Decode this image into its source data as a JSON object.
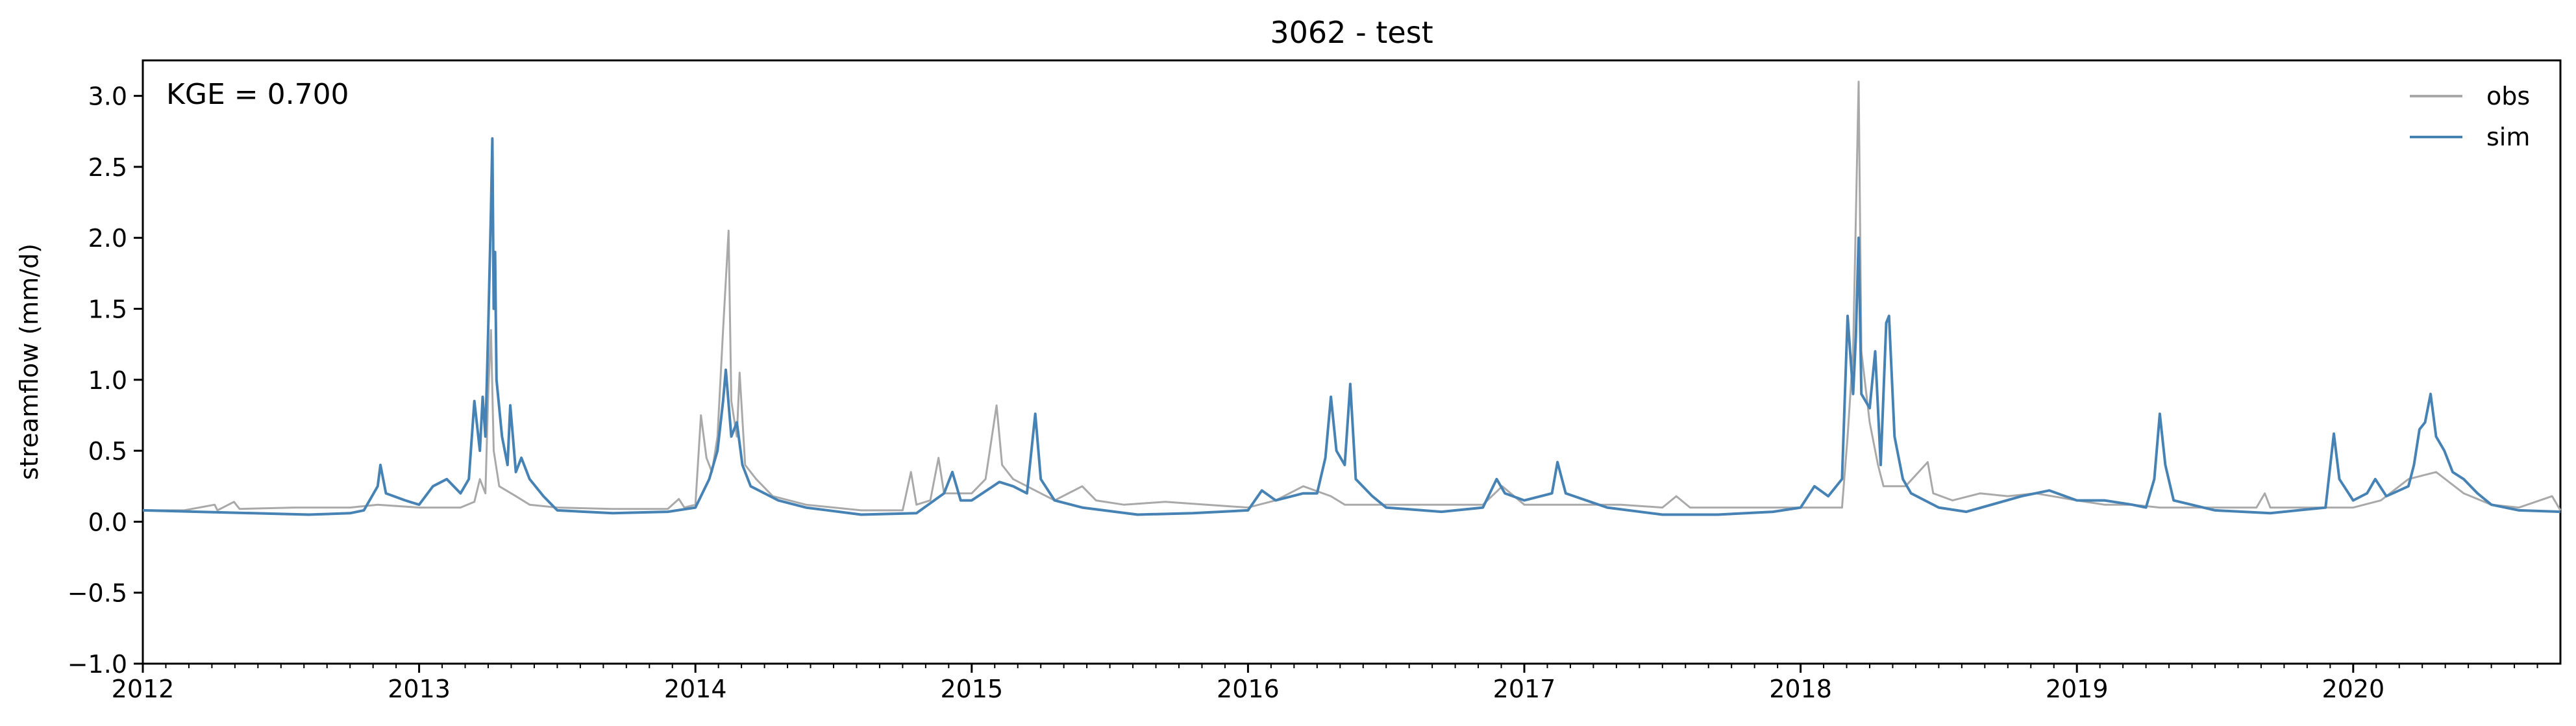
{
  "chart_data": {
    "type": "line",
    "title": "3062 - test",
    "xlabel": "",
    "ylabel": "streamflow (mm/d)",
    "annotation": "KGE = 0.700",
    "xlim": [
      2012.0,
      2020.75
    ],
    "ylim": [
      -1.0,
      3.25
    ],
    "x_ticks": [
      2012,
      2013,
      2014,
      2015,
      2016,
      2017,
      2018,
      2019,
      2020
    ],
    "x_tick_labels": [
      "2012",
      "2013",
      "2014",
      "2015",
      "2016",
      "2017",
      "2018",
      "2019",
      "2020"
    ],
    "y_ticks": [
      -1.0,
      -0.5,
      0.0,
      0.5,
      1.0,
      1.5,
      2.0,
      2.5,
      3.0
    ],
    "y_tick_labels": [
      "−1.0",
      "−0.5",
      "0.0",
      "0.5",
      "1.0",
      "1.5",
      "2.0",
      "2.5",
      "3.0"
    ],
    "grid": false,
    "legend_position": "top-right",
    "series": [
      {
        "name": "obs",
        "color": "#a9a9a9",
        "points": [
          [
            2012.0,
            0.08
          ],
          [
            2012.15,
            0.08
          ],
          [
            2012.26,
            0.12
          ],
          [
            2012.27,
            0.08
          ],
          [
            2012.33,
            0.14
          ],
          [
            2012.35,
            0.09
          ],
          [
            2012.55,
            0.1
          ],
          [
            2012.75,
            0.1
          ],
          [
            2012.85,
            0.12
          ],
          [
            2013.0,
            0.1
          ],
          [
            2013.15,
            0.1
          ],
          [
            2013.2,
            0.14
          ],
          [
            2013.22,
            0.3
          ],
          [
            2013.24,
            0.2
          ],
          [
            2013.25,
            0.9
          ],
          [
            2013.26,
            1.35
          ],
          [
            2013.27,
            0.5
          ],
          [
            2013.29,
            0.25
          ],
          [
            2013.35,
            0.18
          ],
          [
            2013.4,
            0.12
          ],
          [
            2013.5,
            0.1
          ],
          [
            2013.7,
            0.09
          ],
          [
            2013.9,
            0.09
          ],
          [
            2013.94,
            0.16
          ],
          [
            2013.96,
            0.1
          ],
          [
            2014.0,
            0.12
          ],
          [
            2014.02,
            0.75
          ],
          [
            2014.04,
            0.45
          ],
          [
            2014.06,
            0.35
          ],
          [
            2014.08,
            0.6
          ],
          [
            2014.1,
            1.35
          ],
          [
            2014.12,
            2.05
          ],
          [
            2014.13,
            0.85
          ],
          [
            2014.15,
            0.6
          ],
          [
            2014.16,
            1.05
          ],
          [
            2014.18,
            0.4
          ],
          [
            2014.22,
            0.3
          ],
          [
            2014.28,
            0.18
          ],
          [
            2014.4,
            0.12
          ],
          [
            2014.6,
            0.08
          ],
          [
            2014.75,
            0.08
          ],
          [
            2014.78,
            0.35
          ],
          [
            2014.8,
            0.12
          ],
          [
            2014.85,
            0.15
          ],
          [
            2014.88,
            0.45
          ],
          [
            2014.9,
            0.2
          ],
          [
            2015.0,
            0.2
          ],
          [
            2015.05,
            0.3
          ],
          [
            2015.09,
            0.82
          ],
          [
            2015.11,
            0.4
          ],
          [
            2015.15,
            0.3
          ],
          [
            2015.25,
            0.2
          ],
          [
            2015.3,
            0.15
          ],
          [
            2015.4,
            0.25
          ],
          [
            2015.45,
            0.15
          ],
          [
            2015.55,
            0.12
          ],
          [
            2015.7,
            0.14
          ],
          [
            2015.85,
            0.12
          ],
          [
            2016.0,
            0.1
          ],
          [
            2016.1,
            0.15
          ],
          [
            2016.2,
            0.25
          ],
          [
            2016.3,
            0.18
          ],
          [
            2016.35,
            0.12
          ],
          [
            2016.5,
            0.12
          ],
          [
            2016.7,
            0.12
          ],
          [
            2016.85,
            0.12
          ],
          [
            2016.92,
            0.25
          ],
          [
            2017.0,
            0.12
          ],
          [
            2017.2,
            0.12
          ],
          [
            2017.35,
            0.12
          ],
          [
            2017.5,
            0.1
          ],
          [
            2017.55,
            0.18
          ],
          [
            2017.6,
            0.1
          ],
          [
            2017.8,
            0.1
          ],
          [
            2018.0,
            0.1
          ],
          [
            2018.15,
            0.1
          ],
          [
            2018.17,
            0.6
          ],
          [
            2018.19,
            1.2
          ],
          [
            2018.21,
            3.1
          ],
          [
            2018.22,
            1.2
          ],
          [
            2018.25,
            0.7
          ],
          [
            2018.28,
            0.4
          ],
          [
            2018.3,
            0.25
          ],
          [
            2018.38,
            0.25
          ],
          [
            2018.46,
            0.42
          ],
          [
            2018.48,
            0.2
          ],
          [
            2018.55,
            0.15
          ],
          [
            2018.65,
            0.2
          ],
          [
            2018.75,
            0.18
          ],
          [
            2018.85,
            0.2
          ],
          [
            2019.0,
            0.15
          ],
          [
            2019.1,
            0.12
          ],
          [
            2019.2,
            0.12
          ],
          [
            2019.3,
            0.1
          ],
          [
            2019.5,
            0.1
          ],
          [
            2019.65,
            0.1
          ],
          [
            2019.68,
            0.2
          ],
          [
            2019.7,
            0.1
          ],
          [
            2019.9,
            0.1
          ],
          [
            2020.0,
            0.1
          ],
          [
            2020.1,
            0.15
          ],
          [
            2020.2,
            0.3
          ],
          [
            2020.3,
            0.35
          ],
          [
            2020.4,
            0.2
          ],
          [
            2020.5,
            0.12
          ],
          [
            2020.6,
            0.1
          ],
          [
            2020.72,
            0.18
          ],
          [
            2020.75,
            0.08
          ]
        ]
      },
      {
        "name": "sim",
        "color": "#4682b4",
        "points": [
          [
            2012.0,
            0.08
          ],
          [
            2012.2,
            0.07
          ],
          [
            2012.4,
            0.06
          ],
          [
            2012.6,
            0.05
          ],
          [
            2012.75,
            0.06
          ],
          [
            2012.8,
            0.08
          ],
          [
            2012.85,
            0.25
          ],
          [
            2012.86,
            0.4
          ],
          [
            2012.88,
            0.2
          ],
          [
            2012.95,
            0.15
          ],
          [
            2013.0,
            0.12
          ],
          [
            2013.05,
            0.25
          ],
          [
            2013.1,
            0.3
          ],
          [
            2013.15,
            0.2
          ],
          [
            2013.18,
            0.3
          ],
          [
            2013.2,
            0.85
          ],
          [
            2013.22,
            0.5
          ],
          [
            2013.23,
            0.88
          ],
          [
            2013.24,
            0.6
          ],
          [
            2013.25,
            1.35
          ],
          [
            2013.26,
            2.2
          ],
          [
            2013.265,
            2.7
          ],
          [
            2013.27,
            1.5
          ],
          [
            2013.275,
            1.9
          ],
          [
            2013.28,
            1.0
          ],
          [
            2013.3,
            0.6
          ],
          [
            2013.32,
            0.4
          ],
          [
            2013.33,
            0.82
          ],
          [
            2013.35,
            0.35
          ],
          [
            2013.37,
            0.45
          ],
          [
            2013.4,
            0.3
          ],
          [
            2013.45,
            0.18
          ],
          [
            2013.5,
            0.08
          ],
          [
            2013.7,
            0.06
          ],
          [
            2013.9,
            0.07
          ],
          [
            2014.0,
            0.1
          ],
          [
            2014.05,
            0.3
          ],
          [
            2014.08,
            0.5
          ],
          [
            2014.1,
            0.85
          ],
          [
            2014.11,
            1.07
          ],
          [
            2014.13,
            0.6
          ],
          [
            2014.15,
            0.7
          ],
          [
            2014.17,
            0.4
          ],
          [
            2014.2,
            0.25
          ],
          [
            2014.25,
            0.2
          ],
          [
            2014.3,
            0.15
          ],
          [
            2014.4,
            0.1
          ],
          [
            2014.6,
            0.05
          ],
          [
            2014.8,
            0.06
          ],
          [
            2014.9,
            0.2
          ],
          [
            2014.93,
            0.35
          ],
          [
            2014.96,
            0.15
          ],
          [
            2015.0,
            0.15
          ],
          [
            2015.1,
            0.28
          ],
          [
            2015.15,
            0.25
          ],
          [
            2015.2,
            0.2
          ],
          [
            2015.23,
            0.76
          ],
          [
            2015.25,
            0.3
          ],
          [
            2015.3,
            0.15
          ],
          [
            2015.4,
            0.1
          ],
          [
            2015.6,
            0.05
          ],
          [
            2015.8,
            0.06
          ],
          [
            2016.0,
            0.08
          ],
          [
            2016.05,
            0.22
          ],
          [
            2016.1,
            0.15
          ],
          [
            2016.2,
            0.2
          ],
          [
            2016.25,
            0.2
          ],
          [
            2016.28,
            0.45
          ],
          [
            2016.3,
            0.88
          ],
          [
            2016.32,
            0.5
          ],
          [
            2016.35,
            0.4
          ],
          [
            2016.37,
            0.97
          ],
          [
            2016.39,
            0.3
          ],
          [
            2016.45,
            0.18
          ],
          [
            2016.5,
            0.1
          ],
          [
            2016.7,
            0.07
          ],
          [
            2016.85,
            0.1
          ],
          [
            2016.9,
            0.3
          ],
          [
            2016.93,
            0.2
          ],
          [
            2017.0,
            0.15
          ],
          [
            2017.1,
            0.2
          ],
          [
            2017.12,
            0.42
          ],
          [
            2017.15,
            0.2
          ],
          [
            2017.3,
            0.1
          ],
          [
            2017.5,
            0.05
          ],
          [
            2017.7,
            0.05
          ],
          [
            2017.9,
            0.07
          ],
          [
            2018.0,
            0.1
          ],
          [
            2018.05,
            0.25
          ],
          [
            2018.1,
            0.18
          ],
          [
            2018.15,
            0.3
          ],
          [
            2018.17,
            1.45
          ],
          [
            2018.19,
            0.9
          ],
          [
            2018.2,
            1.3
          ],
          [
            2018.21,
            2.0
          ],
          [
            2018.22,
            0.9
          ],
          [
            2018.25,
            0.8
          ],
          [
            2018.27,
            1.2
          ],
          [
            2018.29,
            0.4
          ],
          [
            2018.31,
            1.4
          ],
          [
            2018.32,
            1.45
          ],
          [
            2018.34,
            0.6
          ],
          [
            2018.37,
            0.3
          ],
          [
            2018.4,
            0.2
          ],
          [
            2018.5,
            0.1
          ],
          [
            2018.6,
            0.07
          ],
          [
            2018.8,
            0.18
          ],
          [
            2018.9,
            0.22
          ],
          [
            2019.0,
            0.15
          ],
          [
            2019.1,
            0.15
          ],
          [
            2019.2,
            0.12
          ],
          [
            2019.25,
            0.1
          ],
          [
            2019.28,
            0.3
          ],
          [
            2019.3,
            0.76
          ],
          [
            2019.32,
            0.4
          ],
          [
            2019.35,
            0.15
          ],
          [
            2019.5,
            0.08
          ],
          [
            2019.7,
            0.06
          ],
          [
            2019.9,
            0.1
          ],
          [
            2019.93,
            0.62
          ],
          [
            2019.95,
            0.3
          ],
          [
            2020.0,
            0.15
          ],
          [
            2020.05,
            0.2
          ],
          [
            2020.08,
            0.3
          ],
          [
            2020.12,
            0.18
          ],
          [
            2020.2,
            0.25
          ],
          [
            2020.22,
            0.4
          ],
          [
            2020.24,
            0.65
          ],
          [
            2020.26,
            0.7
          ],
          [
            2020.28,
            0.9
          ],
          [
            2020.3,
            0.6
          ],
          [
            2020.33,
            0.5
          ],
          [
            2020.36,
            0.35
          ],
          [
            2020.4,
            0.3
          ],
          [
            2020.45,
            0.2
          ],
          [
            2020.5,
            0.12
          ],
          [
            2020.6,
            0.08
          ],
          [
            2020.75,
            0.07
          ]
        ]
      }
    ]
  }
}
